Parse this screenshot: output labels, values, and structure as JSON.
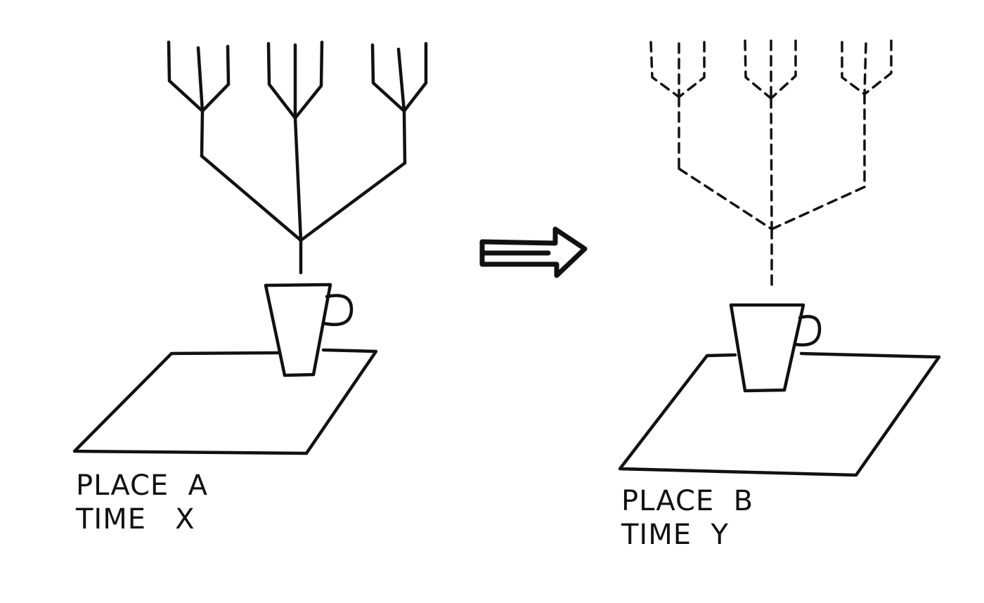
{
  "scene_a": {
    "place_label": "PLACE  A",
    "time_label": "TIME   X"
  },
  "scene_b": {
    "place_label": "PLACE  B",
    "time_label": "TIME  Y"
  },
  "colors": {
    "ink": "#111111",
    "background": "#ffffff"
  },
  "icons": {
    "left_tree": "tree-icon",
    "right_tree": "dashed-tree-icon",
    "cup": "cup-icon",
    "transition": "right-arrow-icon"
  }
}
